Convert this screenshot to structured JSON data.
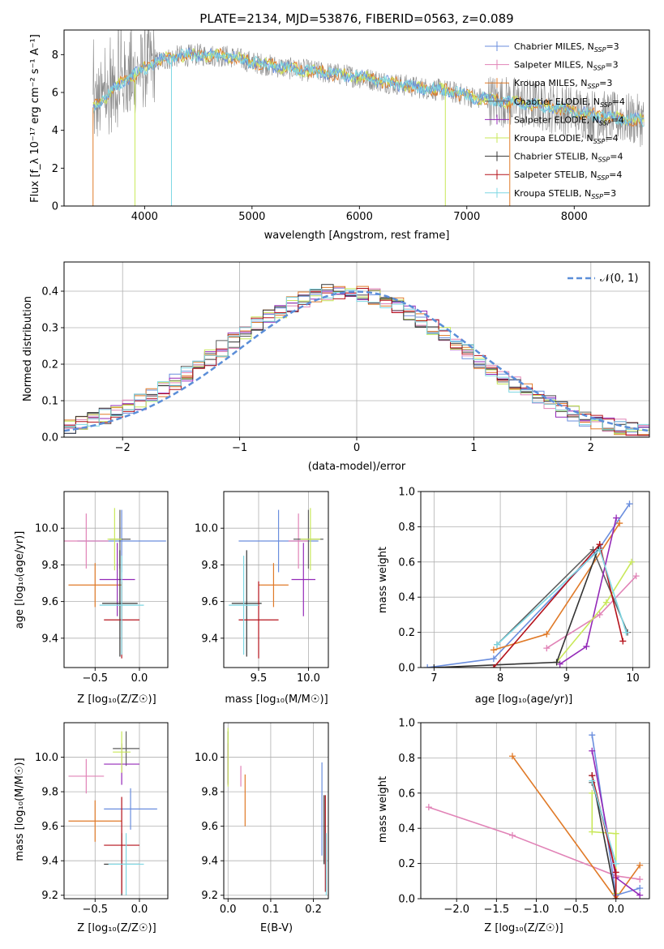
{
  "title": "PLATE=2134, MJD=53876, FIBERID=0563, z=0.089",
  "colors": {
    "c_miles": "#6a8ede",
    "s_miles": "#e183b7",
    "k_miles": "#e07a28",
    "c_elodie": "#5e5e5e",
    "s_elodie": "#9429b8",
    "k_elodie": "#c9e85a",
    "c_stelib": "#333333",
    "s_stelib": "#b5121b",
    "k_stelib": "#7dd7e3",
    "spectrum": "#8a8a8a",
    "normal": "#5b8ed8",
    "grid": "#b0b0b0"
  },
  "labels": {
    "p1_xlabel": "wavelength [Angstrom, rest frame]",
    "p1_ylabel": "Flux [f_λ 10⁻¹⁷ erg cm⁻² s⁻¹ A⁻¹]",
    "p2_xlabel": "(data-model)/error",
    "p2_ylabel": "Normed distribution",
    "normal_legend": "𝒩(0, 1)",
    "age_label": "age  [log₁₀(age/yr)]",
    "z_label": "Z [log₁₀(Z/Z☉)]",
    "mass_label": "mass [log₁₀(M/M☉)]",
    "ebv_label": "E(B-V)",
    "mw_label": "mass weight"
  },
  "legend": [
    {
      "key": "c_miles",
      "text": "Chabrier MILES, N",
      "nssp": "3"
    },
    {
      "key": "s_miles",
      "text": "Salpeter MILES, N",
      "nssp": "3"
    },
    {
      "key": "k_miles",
      "text": "Kroupa MILES, N",
      "nssp": "3"
    },
    {
      "key": "c_elodie",
      "text": "Chabrier ELODIE, N",
      "nssp": "4"
    },
    {
      "key": "s_elodie",
      "text": "Salpeter ELODIE, N",
      "nssp": "4"
    },
    {
      "key": "k_elodie",
      "text": "Kroupa ELODIE, N",
      "nssp": "4"
    },
    {
      "key": "c_stelib",
      "text": "Chabrier STELIB, N",
      "nssp": "4"
    },
    {
      "key": "s_stelib",
      "text": "Salpeter STELIB, N",
      "nssp": "4"
    },
    {
      "key": "k_stelib",
      "text": "Kroupa STELIB, N",
      "nssp": "3"
    }
  ],
  "chart_data": [
    {
      "id": "p1",
      "type": "line",
      "xlim": [
        3250,
        8700
      ],
      "ylim": [
        0,
        9.3
      ],
      "xticks": [
        4000,
        5000,
        6000,
        7000,
        8000
      ],
      "yticks": [
        0,
        2,
        4,
        6,
        8
      ],
      "continuum": [
        [
          3520,
          5.2
        ],
        [
          3650,
          5.8
        ],
        [
          3800,
          6.6
        ],
        [
          3950,
          7.1
        ],
        [
          4100,
          7.6
        ],
        [
          4300,
          7.9
        ],
        [
          4500,
          8.0
        ],
        [
          4800,
          7.9
        ],
        [
          5000,
          7.6
        ],
        [
          5300,
          7.3
        ],
        [
          5600,
          7.1
        ],
        [
          5900,
          6.9
        ],
        [
          6200,
          6.6
        ],
        [
          6500,
          6.3
        ],
        [
          6800,
          6.1
        ],
        [
          7100,
          5.7
        ],
        [
          7400,
          5.5
        ],
        [
          7700,
          5.3
        ],
        [
          8000,
          5.0
        ],
        [
          8300,
          4.7
        ],
        [
          8650,
          4.5
        ]
      ]
    },
    {
      "id": "p2",
      "type": "histogram",
      "xlim": [
        -2.5,
        2.5
      ],
      "ylim": [
        0,
        0.48
      ],
      "xticks": [
        -2,
        -1,
        0,
        1,
        2
      ],
      "yticks": [
        0.0,
        0.1,
        0.2,
        0.3,
        0.4
      ]
    },
    {
      "id": "p3",
      "type": "errorbar",
      "xlim": [
        -0.85,
        0.32
      ],
      "ylim": [
        9.24,
        10.2
      ],
      "xticks": [
        -0.5,
        0.0
      ],
      "yticks": [
        9.4,
        9.6,
        9.8,
        10.0
      ],
      "points": [
        {
          "s": "c_miles",
          "x": -0.2,
          "y": 9.93,
          "xerr": 0.5,
          "yerr": 0.17
        },
        {
          "s": "s_miles",
          "x": -0.6,
          "y": 9.93,
          "xerr": 0.25,
          "yerr": 0.15
        },
        {
          "s": "k_miles",
          "x": -0.5,
          "y": 9.69,
          "xerr": 0.3,
          "yerr": 0.12
        },
        {
          "s": "c_elodie",
          "x": -0.22,
          "y": 9.94,
          "xerr": 0.12,
          "yerr": 0.16
        },
        {
          "s": "s_elodie",
          "x": -0.25,
          "y": 9.72,
          "xerr": 0.2,
          "yerr": 0.2
        },
        {
          "s": "k_elodie",
          "x": -0.28,
          "y": 9.94,
          "xerr": 0.08,
          "yerr": 0.17
        },
        {
          "s": "c_stelib",
          "x": -0.22,
          "y": 9.59,
          "xerr": 0.2,
          "yerr": 0.29
        },
        {
          "s": "s_stelib",
          "x": -0.2,
          "y": 9.5,
          "xerr": 0.2,
          "yerr": 0.21
        },
        {
          "s": "k_stelib",
          "x": -0.2,
          "y": 9.58,
          "xerr": 0.25,
          "yerr": 0.27
        }
      ]
    },
    {
      "id": "p4",
      "type": "errorbar",
      "xlim": [
        9.15,
        10.2
      ],
      "ylim": [
        9.24,
        10.2
      ],
      "xticks": [
        9.5,
        10.0
      ],
      "yticks": [
        9.4,
        9.6,
        9.8,
        10.0
      ],
      "points": [
        {
          "s": "c_miles",
          "x": 9.7,
          "y": 9.93,
          "xerr": 0.4,
          "yerr": 0.17
        },
        {
          "s": "s_miles",
          "x": 9.9,
          "y": 9.93,
          "xerr": 0.1,
          "yerr": 0.15
        },
        {
          "s": "k_miles",
          "x": 9.65,
          "y": 9.69,
          "xerr": 0.15,
          "yerr": 0.12
        },
        {
          "s": "c_elodie",
          "x": 10.0,
          "y": 9.94,
          "xerr": 0.15,
          "yerr": 0.16
        },
        {
          "s": "s_elodie",
          "x": 9.95,
          "y": 9.72,
          "xerr": 0.12,
          "yerr": 0.2
        },
        {
          "s": "k_elodie",
          "x": 10.02,
          "y": 9.94,
          "xerr": 0.1,
          "yerr": 0.17
        },
        {
          "s": "c_stelib",
          "x": 9.38,
          "y": 9.59,
          "xerr": 0.15,
          "yerr": 0.29
        },
        {
          "s": "s_stelib",
          "x": 9.5,
          "y": 9.5,
          "xerr": 0.2,
          "yerr": 0.21
        },
        {
          "s": "k_stelib",
          "x": 9.35,
          "y": 9.58,
          "xerr": 0.15,
          "yerr": 0.27
        }
      ]
    },
    {
      "id": "p5",
      "type": "line",
      "xlim": [
        6.8,
        10.25
      ],
      "ylim": [
        0,
        1.0
      ],
      "xticks": [
        7,
        8,
        9,
        10
      ],
      "yticks": [
        0.0,
        0.2,
        0.4,
        0.6,
        0.8,
        1.0
      ],
      "series": [
        {
          "s": "c_miles",
          "x": [
            6.9,
            7.9,
            9.5,
            9.95
          ],
          "y": [
            0.0,
            0.05,
            0.68,
            0.93
          ]
        },
        {
          "s": "s_miles",
          "x": [
            8.7,
            9.5,
            10.05
          ],
          "y": [
            0.11,
            0.3,
            0.52
          ]
        },
        {
          "s": "k_miles",
          "x": [
            7.9,
            8.7,
            9.8
          ],
          "y": [
            0.1,
            0.19,
            0.82
          ]
        },
        {
          "s": "c_elodie",
          "x": [
            7.95,
            9.4,
            9.92
          ],
          "y": [
            0.13,
            0.67,
            0.2
          ]
        },
        {
          "s": "s_elodie",
          "x": [
            8.9,
            9.3,
            9.75
          ],
          "y": [
            0.02,
            0.12,
            0.85
          ]
        },
        {
          "s": "k_elodie",
          "x": [
            8.85,
            9.6,
            9.98
          ],
          "y": [
            0.03,
            0.37,
            0.6
          ]
        },
        {
          "s": "c_stelib",
          "x": [
            7.0,
            8.85,
            9.5
          ],
          "y": [
            0.0,
            0.03,
            0.7
          ]
        },
        {
          "s": "s_stelib",
          "x": [
            7.9,
            9.5,
            9.85
          ],
          "y": [
            0.0,
            0.7,
            0.15
          ]
        },
        {
          "s": "k_stelib",
          "x": [
            7.95,
            9.5,
            9.9
          ],
          "y": [
            0.13,
            0.67,
            0.2
          ]
        }
      ]
    },
    {
      "id": "p6",
      "type": "errorbar",
      "xlim": [
        -0.85,
        0.32
      ],
      "ylim": [
        9.18,
        10.2
      ],
      "xticks": [
        -0.5,
        0.0
      ],
      "yticks": [
        9.2,
        9.4,
        9.6,
        9.8,
        10.0
      ],
      "points": [
        {
          "s": "c_miles",
          "x": -0.1,
          "y": 9.7,
          "xerr": 0.3,
          "yerr": 0.12
        },
        {
          "s": "s_miles",
          "x": -0.6,
          "y": 9.89,
          "xerr": 0.2,
          "yerr": 0.1
        },
        {
          "s": "k_miles",
          "x": -0.5,
          "y": 9.63,
          "xerr": 0.3,
          "yerr": 0.12
        },
        {
          "s": "c_elodie",
          "x": -0.15,
          "y": 10.05,
          "xerr": 0.15,
          "yerr": 0.1
        },
        {
          "s": "s_elodie",
          "x": -0.2,
          "y": 9.96,
          "xerr": 0.2,
          "yerr": 0.12
        },
        {
          "s": "k_elodie",
          "x": -0.2,
          "y": 10.03,
          "xerr": 0.1,
          "yerr": 0.12
        },
        {
          "s": "c_stelib",
          "x": -0.2,
          "y": 9.38,
          "xerr": 0.2,
          "yerr": 0.18
        },
        {
          "s": "s_stelib",
          "x": -0.2,
          "y": 9.49,
          "xerr": 0.2,
          "yerr": 0.28
        },
        {
          "s": "k_stelib",
          "x": -0.15,
          "y": 9.38,
          "xerr": 0.2,
          "yerr": 0.18
        }
      ]
    },
    {
      "id": "p7",
      "type": "errorbar",
      "xlim": [
        -0.01,
        0.235
      ],
      "ylim": [
        9.18,
        10.2
      ],
      "xticks": [
        0.0,
        0.1,
        0.2
      ],
      "yticks": [
        9.2,
        9.4,
        9.6,
        9.8,
        10.0
      ],
      "points": [
        {
          "s": "c_miles",
          "x": 0.22,
          "y": 9.7,
          "xerr": 0,
          "yerr": 0.27
        },
        {
          "s": "s_miles",
          "x": 0.03,
          "y": 9.89,
          "xerr": 0,
          "yerr": 0.06
        },
        {
          "s": "k_miles",
          "x": 0.04,
          "y": 9.75,
          "xerr": 0,
          "yerr": 0.15
        },
        {
          "s": "c_elodie",
          "x": 0.0,
          "y": 10.0,
          "xerr": 0,
          "yerr": 0.15
        },
        {
          "s": "s_elodie",
          "x": 0.0,
          "y": 9.96,
          "xerr": 0,
          "yerr": 0.12
        },
        {
          "s": "k_elodie",
          "x": 0.0,
          "y": 10.0,
          "xerr": 0,
          "yerr": 0.17
        },
        {
          "s": "c_stelib",
          "x": 0.225,
          "y": 9.58,
          "xerr": 0,
          "yerr": 0.2
        },
        {
          "s": "s_stelib",
          "x": 0.228,
          "y": 9.5,
          "xerr": 0,
          "yerr": 0.28
        },
        {
          "s": "k_stelib",
          "x": 0.23,
          "y": 9.38,
          "xerr": 0,
          "yerr": 0.18
        }
      ]
    },
    {
      "id": "p8",
      "type": "line",
      "xlim": [
        -2.45,
        0.42
      ],
      "ylim": [
        0,
        1.0
      ],
      "xticks": [
        -2.0,
        -1.5,
        -1.0,
        -0.5,
        0.0
      ],
      "yticks": [
        0.0,
        0.2,
        0.4,
        0.6,
        0.8,
        1.0
      ],
      "series": [
        {
          "s": "s_miles",
          "x": [
            -2.35,
            -1.3,
            0.0,
            0.3
          ],
          "y": [
            0.52,
            0.36,
            0.13,
            0.11
          ]
        },
        {
          "s": "k_miles",
          "x": [
            -1.3,
            0.0,
            0.3
          ],
          "y": [
            0.81,
            0.0,
            0.19
          ]
        },
        {
          "s": "c_miles",
          "x": [
            -0.3,
            0.0,
            0.3
          ],
          "y": [
            0.93,
            0.02,
            0.06
          ]
        },
        {
          "s": "s_elodie",
          "x": [
            -0.3,
            0.0,
            0.3
          ],
          "y": [
            0.84,
            0.12,
            0.02
          ]
        },
        {
          "s": "c_elodie",
          "x": [
            -0.3,
            0.0
          ],
          "y": [
            0.66,
            0.2
          ]
        },
        {
          "s": "k_elodie",
          "x": [
            -0.3,
            -0.3,
            0.0,
            0.0
          ],
          "y": [
            0.6,
            0.38,
            0.37,
            0.03
          ]
        },
        {
          "s": "c_stelib",
          "x": [
            -0.3,
            0.0
          ],
          "y": [
            0.7,
            0.0
          ]
        },
        {
          "s": "s_stelib",
          "x": [
            -0.3,
            0.0,
            0.0
          ],
          "y": [
            0.7,
            0.15,
            0.0
          ]
        },
        {
          "s": "k_stelib",
          "x": [
            -0.3,
            0.0
          ],
          "y": [
            0.67,
            0.2
          ]
        }
      ]
    }
  ]
}
